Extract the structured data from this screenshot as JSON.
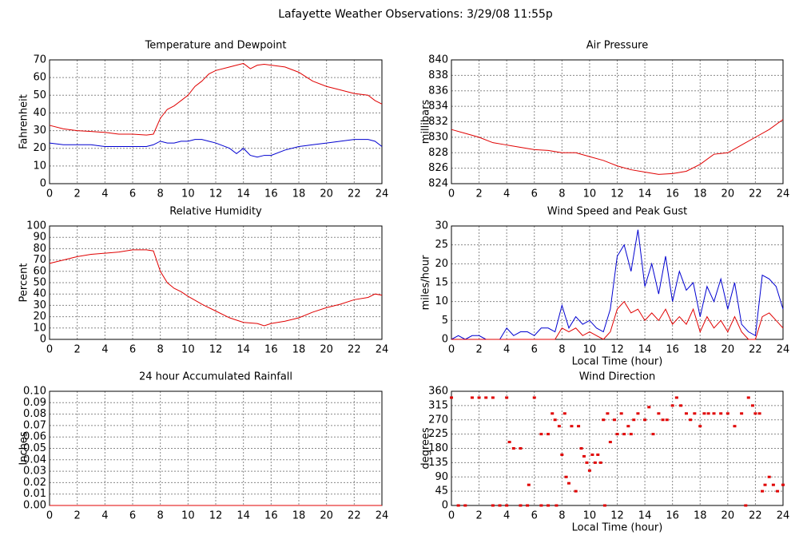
{
  "title": "Lafayette Weather Observations: 3/29/08 11:55p",
  "chart_data": [
    {
      "type": "line",
      "title": "Temperature and Dewpoint",
      "ylabel": "Fahrenheit",
      "grid": true,
      "x": [
        0,
        1,
        2,
        3,
        4,
        5,
        6,
        7,
        7.5,
        8,
        8.5,
        9,
        9.5,
        10,
        10.5,
        11,
        11.5,
        12,
        13,
        13.5,
        14,
        14.5,
        15,
        15.5,
        16,
        17,
        18,
        19,
        20,
        21,
        22,
        23,
        23.5,
        24
      ],
      "xlim": [
        0,
        24
      ],
      "xticks": [
        0,
        2,
        4,
        6,
        8,
        10,
        12,
        14,
        16,
        18,
        20,
        22,
        24
      ],
      "ylim": [
        0,
        70
      ],
      "yticks": [
        0,
        10,
        20,
        30,
        40,
        50,
        60,
        70
      ],
      "series": [
        {
          "color": "#e00000",
          "values": [
            33,
            31,
            30,
            29.5,
            29,
            28,
            28,
            27.5,
            28,
            37,
            42,
            44,
            47,
            50,
            55,
            58,
            62,
            64,
            66,
            67,
            68,
            65,
            67,
            67.5,
            67,
            66,
            63,
            58,
            55,
            53,
            51,
            50,
            47,
            45
          ]
        },
        {
          "color": "#0000d0",
          "values": [
            23,
            22,
            22,
            22,
            21,
            21,
            21,
            21,
            22,
            24,
            23,
            23,
            24,
            24,
            25,
            25,
            24,
            23,
            20,
            17,
            20,
            16,
            15,
            16,
            16,
            19,
            21,
            22,
            23,
            24,
            25,
            25,
            24,
            21
          ]
        }
      ]
    },
    {
      "type": "line",
      "title": "Air Pressure",
      "ylabel": "millibars",
      "grid": true,
      "x": [
        0,
        1,
        2,
        3,
        4,
        5,
        6,
        7,
        8,
        9,
        10,
        11,
        12,
        13,
        14,
        15,
        16,
        17,
        18,
        19,
        20,
        21,
        22,
        23,
        24
      ],
      "xlim": [
        0,
        24
      ],
      "xticks": [
        0,
        2,
        4,
        6,
        8,
        10,
        12,
        14,
        16,
        18,
        20,
        22,
        24
      ],
      "ylim": [
        824,
        840
      ],
      "yticks": [
        824,
        826,
        828,
        830,
        832,
        834,
        836,
        838,
        840
      ],
      "series": [
        {
          "color": "#e00000",
          "values": [
            831,
            830.5,
            830,
            829.3,
            829,
            828.7,
            828.4,
            828.3,
            828,
            828,
            827.5,
            827,
            826.3,
            825.8,
            825.5,
            825.2,
            825.3,
            825.6,
            826.5,
            827.8,
            828,
            829,
            830,
            831,
            832.3
          ]
        }
      ]
    },
    {
      "type": "line",
      "title": "Relative Humidity",
      "ylabel": "Percent",
      "grid": true,
      "x": [
        0,
        1,
        2,
        3,
        4,
        5,
        6,
        7,
        7.5,
        8,
        8.5,
        9,
        9.5,
        10,
        11,
        12,
        13,
        14,
        15,
        15.5,
        16,
        17,
        18,
        19,
        20,
        21,
        22,
        23,
        23.5,
        24
      ],
      "xlim": [
        0,
        24
      ],
      "xticks": [
        0,
        2,
        4,
        6,
        8,
        10,
        12,
        14,
        16,
        18,
        20,
        22,
        24
      ],
      "ylim": [
        0,
        100
      ],
      "yticks": [
        0,
        10,
        20,
        30,
        40,
        50,
        60,
        70,
        80,
        90,
        100
      ],
      "series": [
        {
          "color": "#e00000",
          "values": [
            67,
            70,
            73,
            75,
            76,
            77,
            79,
            79,
            78,
            60,
            50,
            45,
            42,
            38,
            31,
            25,
            19,
            15,
            14,
            12,
            14,
            16,
            19,
            24,
            28,
            31,
            35,
            37,
            40,
            39
          ]
        }
      ]
    },
    {
      "type": "line",
      "title": "Wind Speed and Peak Gust",
      "ylabel": "miles/hour",
      "xlabel": "Local Time (hour)",
      "grid": true,
      "x": [
        0,
        0.5,
        1,
        1.5,
        2,
        2.5,
        3,
        3.5,
        4,
        4.5,
        5,
        5.5,
        6,
        6.5,
        7,
        7.5,
        8,
        8.5,
        9,
        9.5,
        10,
        10.5,
        11,
        11.5,
        12,
        12.5,
        13,
        13.5,
        14,
        14.5,
        15,
        15.5,
        16,
        16.5,
        17,
        17.5,
        18,
        18.5,
        19,
        19.5,
        20,
        20.5,
        21,
        21.5,
        22,
        22.5,
        23,
        23.5,
        24
      ],
      "xlim": [
        0,
        24
      ],
      "xticks": [
        0,
        2,
        4,
        6,
        8,
        10,
        12,
        14,
        16,
        18,
        20,
        22,
        24
      ],
      "ylim": [
        0,
        30
      ],
      "yticks": [
        0,
        5,
        10,
        15,
        20,
        25,
        30
      ],
      "series": [
        {
          "color": "#0000d0",
          "values": [
            0,
            1,
            0,
            1,
            1,
            0,
            0,
            0,
            3,
            1,
            2,
            2,
            1,
            3,
            3,
            2,
            9,
            3,
            6,
            4,
            5,
            3,
            2,
            8,
            22,
            25,
            18,
            29,
            14,
            20,
            12,
            22,
            10,
            18,
            13,
            15,
            6,
            14,
            10,
            16,
            8,
            15,
            4,
            2,
            1,
            17,
            16,
            14,
            8
          ]
        },
        {
          "color": "#e00000",
          "values": [
            0,
            0,
            0,
            0,
            0,
            0,
            0,
            0,
            0,
            0,
            0,
            0,
            0,
            0,
            0,
            0,
            3,
            2,
            3,
            1,
            2,
            1,
            0,
            2,
            8,
            10,
            7,
            8,
            5,
            7,
            5,
            8,
            4,
            6,
            4,
            8,
            2,
            6,
            3,
            5,
            2,
            6,
            2,
            0,
            0,
            6,
            7,
            5,
            3
          ]
        }
      ]
    },
    {
      "type": "line",
      "title": "24 hour Accumulated Rainfall",
      "ylabel": "Inches",
      "grid": true,
      "x": [
        0,
        24
      ],
      "xlim": [
        0,
        24
      ],
      "xticks": [
        0,
        2,
        4,
        6,
        8,
        10,
        12,
        14,
        16,
        18,
        20,
        22,
        24
      ],
      "ylim": [
        0,
        0.1
      ],
      "yticks": [
        {
          "value": 0,
          "label": "0.00"
        },
        {
          "value": 0.01,
          "label": "0.01"
        },
        {
          "value": 0.02,
          "label": "0.02"
        },
        {
          "value": 0.03,
          "label": "0.03"
        },
        {
          "value": 0.04,
          "label": "0.04"
        },
        {
          "value": 0.05,
          "label": "0.05"
        },
        {
          "value": 0.06,
          "label": "0.06"
        },
        {
          "value": 0.07,
          "label": "0.07"
        },
        {
          "value": 0.08,
          "label": "0.08"
        },
        {
          "value": 0.09,
          "label": "0.09"
        },
        {
          "value": 0.1,
          "label": "0.10"
        }
      ],
      "series": [
        {
          "color": "#e00000",
          "values": [
            0,
            0
          ]
        }
      ]
    },
    {
      "type": "scatter",
      "title": "Wind Direction",
      "ylabel": "degrees",
      "xlabel": "Local Time (hour)",
      "grid": true,
      "x": [
        0,
        0.5,
        1,
        1.5,
        2,
        2.5,
        3,
        3,
        3.5,
        4,
        4,
        4.2,
        4.5,
        5,
        5,
        5.5,
        5.6,
        6,
        6.5,
        6.5,
        7,
        7,
        7.3,
        7.5,
        7.6,
        7.8,
        8,
        8.2,
        8.3,
        8.5,
        8.7,
        9,
        9.2,
        9.4,
        9.6,
        9.8,
        10,
        10.2,
        10.4,
        10.6,
        10.8,
        11,
        11.1,
        11.3,
        11.5,
        11.8,
        12,
        12.3,
        12.5,
        12.8,
        13,
        13.2,
        13.5,
        14,
        14.3,
        14.6,
        15,
        15.3,
        15.6,
        16,
        16.3,
        16.6,
        17,
        17.3,
        17.6,
        18,
        18.3,
        18.6,
        19,
        19.5,
        20,
        20.5,
        21,
        21.3,
        21.5,
        21.8,
        22,
        22.3,
        22.5,
        22.7,
        23,
        23.3,
        23.6,
        24
      ],
      "xlim": [
        0,
        24
      ],
      "xticks": [
        0,
        2,
        4,
        6,
        8,
        10,
        12,
        14,
        16,
        18,
        20,
        22,
        24
      ],
      "ylim": [
        0,
        360
      ],
      "yticks": [
        0,
        45,
        90,
        135,
        180,
        225,
        270,
        315,
        360
      ],
      "series": [
        {
          "color": "#e00000",
          "values": [
            340,
            0,
            0,
            340,
            340,
            340,
            0,
            340,
            0,
            340,
            0,
            200,
            180,
            180,
            0,
            0,
            65,
            340,
            0,
            225,
            225,
            0,
            290,
            270,
            0,
            250,
            160,
            290,
            90,
            70,
            250,
            45,
            250,
            180,
            155,
            135,
            110,
            160,
            135,
            160,
            135,
            270,
            0,
            290,
            200,
            270,
            225,
            290,
            225,
            250,
            225,
            270,
            290,
            270,
            310,
            225,
            290,
            270,
            270,
            315,
            340,
            315,
            290,
            270,
            290,
            250,
            290,
            290,
            290,
            290,
            290,
            250,
            290,
            0,
            340,
            315,
            290,
            290,
            45,
            65,
            90,
            65,
            45,
            65
          ]
        }
      ]
    }
  ]
}
